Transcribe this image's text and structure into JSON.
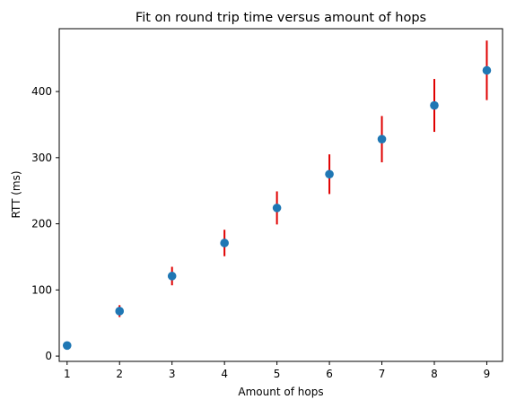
{
  "chart_data": {
    "type": "scatter",
    "title": "Fit on round trip time versus amount of hops",
    "xlabel": "Amount of hops",
    "ylabel": "RTT (ms)",
    "xlim": [
      0.85,
      9.3
    ],
    "ylim": [
      -8,
      495
    ],
    "xticks": [
      1,
      2,
      3,
      4,
      5,
      6,
      7,
      8,
      9
    ],
    "yticks": [
      0,
      100,
      200,
      300,
      400
    ],
    "grid": false,
    "series": [
      {
        "x": [
          1,
          2,
          3,
          4,
          5,
          6,
          7,
          8,
          9
        ],
        "y": [
          16,
          68,
          121,
          171,
          224,
          275,
          328,
          379,
          432
        ],
        "error": [
          3,
          9,
          14,
          20,
          25,
          30,
          35,
          40,
          45
        ],
        "color": "#1f77b4",
        "error_color": "#e00000"
      }
    ]
  }
}
